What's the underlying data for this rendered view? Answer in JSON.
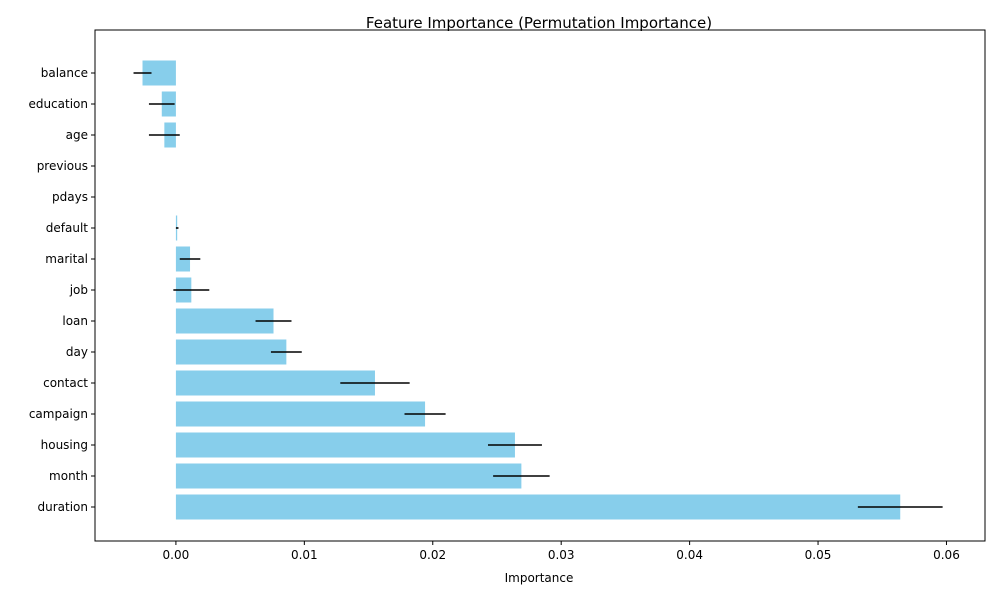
{
  "chart_data": {
    "type": "bar",
    "orientation": "horizontal",
    "title": "Feature Importance (Permutation Importance)",
    "xlabel": "Importance",
    "ylabel": "",
    "xlim": [
      -0.0063,
      0.063
    ],
    "xticks": [
      0.0,
      0.01,
      0.02,
      0.03,
      0.04,
      0.05,
      0.06
    ],
    "xtick_labels": [
      "0.00",
      "0.01",
      "0.02",
      "0.03",
      "0.04",
      "0.05",
      "0.06"
    ],
    "bar_color": "#87ceeb",
    "error_color": "#000000",
    "grid": false,
    "categories": [
      "duration",
      "month",
      "housing",
      "campaign",
      "contact",
      "day",
      "loan",
      "job",
      "marital",
      "default",
      "pdays",
      "previous",
      "age",
      "education",
      "balance"
    ],
    "values": [
      0.0564,
      0.0269,
      0.0264,
      0.0194,
      0.0155,
      0.0086,
      0.0076,
      0.0012,
      0.0011,
      0.0001,
      0.0,
      0.0,
      -0.0009,
      -0.0011,
      -0.0026
    ],
    "errors": [
      0.0033,
      0.0022,
      0.0021,
      0.0016,
      0.0027,
      0.0012,
      0.0014,
      0.0014,
      0.0008,
      0.0001,
      0.0,
      0.0,
      0.0012,
      0.001,
      0.0007
    ]
  }
}
